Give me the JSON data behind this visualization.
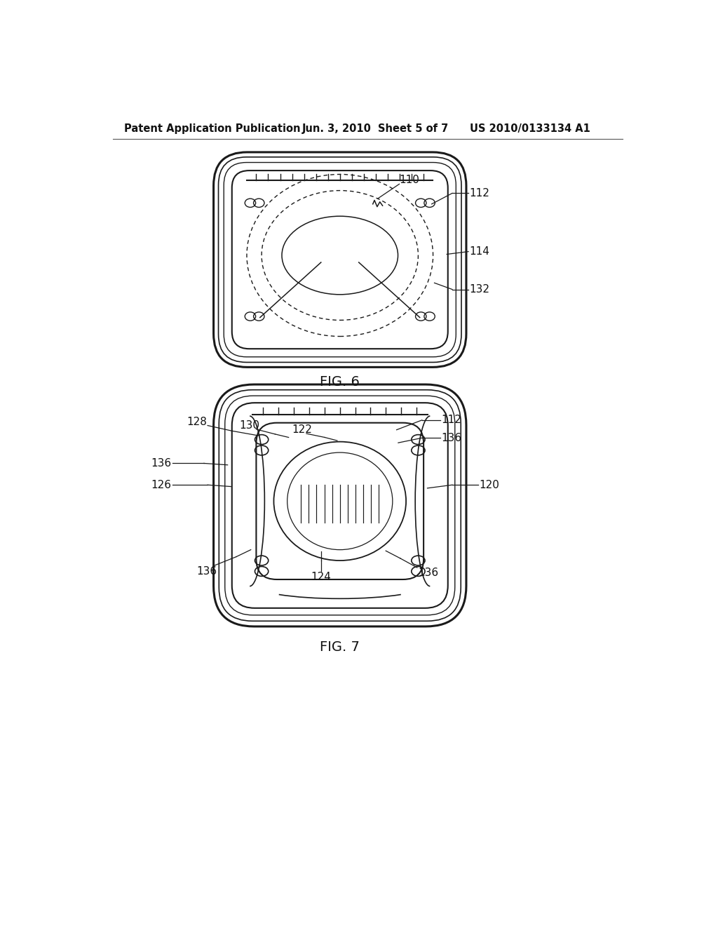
{
  "background_color": "#ffffff",
  "header_text": "Patent Application Publication",
  "header_date": "Jun. 3, 2010",
  "header_sheet": "Sheet 5 of 7",
  "header_patent": "US 2010/0133134 A1",
  "fig6_label": "FIG. 6",
  "fig7_label": "FIG. 7",
  "line_color": "#1a1a1a",
  "text_color": "#111111"
}
